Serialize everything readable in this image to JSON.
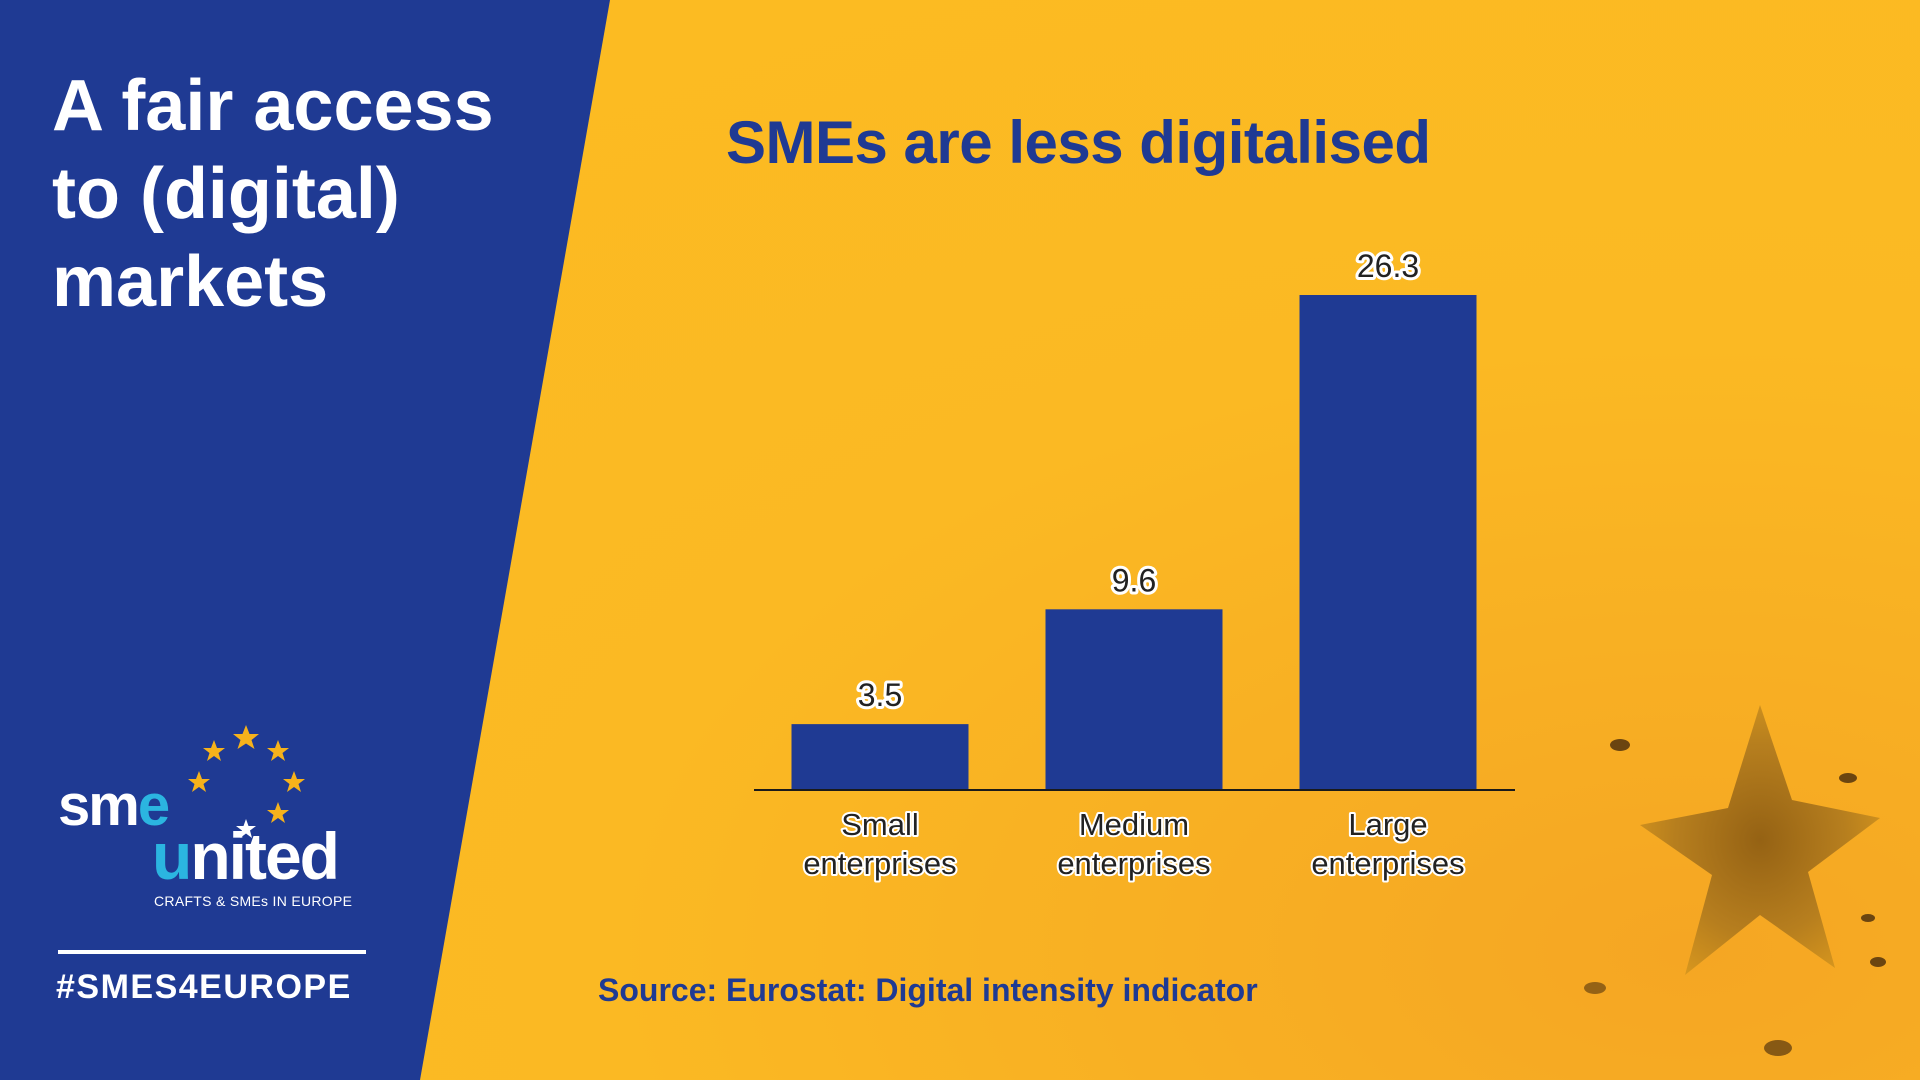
{
  "headline": {
    "line1": "A fair access",
    "line2": "to (digital)",
    "line3": "markets"
  },
  "logo": {
    "sme": "sm",
    "sme_e": "e",
    "united_u": "u",
    "united_rest": "nited",
    "subtitle": "CRAFTS & SMEs IN EUROPE"
  },
  "hashtag": "#SMES4EUROPE",
  "source": "Source: Eurostat: Digital intensity indicator",
  "colors": {
    "brand_blue": "#1F3A93",
    "brand_yellow": "#FBB923",
    "logo_cyan": "#2BB5E0",
    "star_gold": "#F6B21B"
  },
  "chart_data": {
    "type": "bar",
    "title": "SMEs are less digitalised",
    "categories": [
      [
        "Small",
        "enterprises"
      ],
      [
        "Medium",
        "enterprises"
      ],
      [
        "Large",
        "enterprises"
      ]
    ],
    "values": [
      3.5,
      9.6,
      26.3
    ],
    "data_labels": [
      "3.5",
      "9.6",
      "26.3"
    ],
    "ylim": [
      0,
      26.3
    ],
    "grid": false,
    "bar_color": "#1F3A93"
  }
}
